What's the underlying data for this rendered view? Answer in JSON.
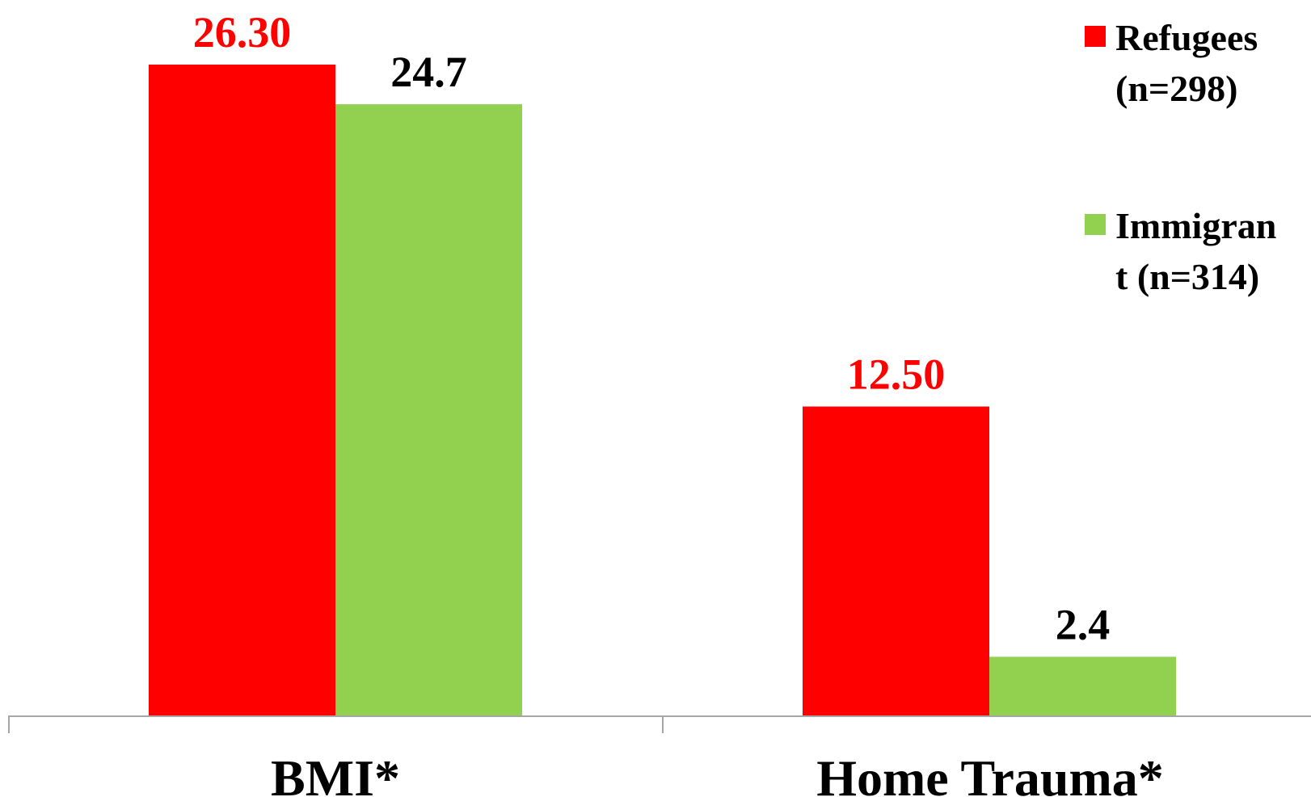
{
  "chart_data": {
    "type": "bar",
    "title": "",
    "xlabel": "",
    "ylabel": "",
    "categories": [
      "BMI*",
      "Home Trauma*"
    ],
    "series": [
      {
        "name": "Refugees (n=298)",
        "legend_lines": [
          "Refugees",
          "(n=298)"
        ],
        "color": "#ff0000",
        "label_color": "#ff0000",
        "values": [
          26.3,
          12.5
        ],
        "value_labels": [
          "26.30",
          "12.50"
        ]
      },
      {
        "name": "Immigrant (n=314)",
        "legend_lines": [
          "Immigran",
          "t (n=314)"
        ],
        "color": "#92d050",
        "label_color": "#000000",
        "values": [
          24.7,
          2.4
        ],
        "value_labels": [
          "24.7",
          "2.4"
        ]
      }
    ],
    "ylim": [
      0,
      26.3
    ],
    "grid": false,
    "legend_position": "top-right",
    "axis_line_color": "#a6a6a6"
  }
}
